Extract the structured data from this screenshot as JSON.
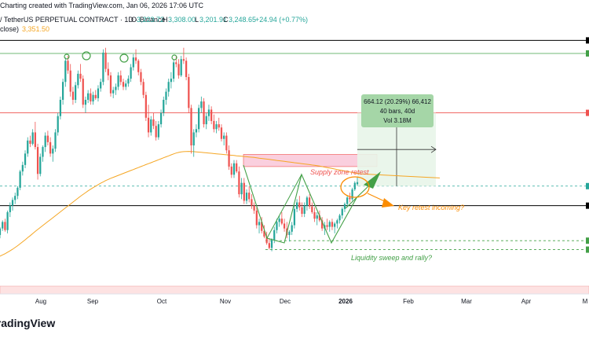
{
  "header": {
    "attribution": "Charting created with TradingView.com, Jan 06, 2026 17:06 UTC",
    "symbol": "/ TetherUS PERPETUAL CONTRACT · 1D · Binance",
    "o_label": "O",
    "o_value": "3,223.72",
    "h_label": "H",
    "h_value": "3,308.00",
    "l_label": "L",
    "l_value": "3,201.91",
    "c_label": "C",
    "c_value": "3,248.65",
    "change": "+24.94 (+0.77%)",
    "ma_label": "close)",
    "ma_value": "3,351.50"
  },
  "colors": {
    "up": "#26a69a",
    "down": "#ef5350",
    "ma": "#f5a623",
    "pattern": "#43a047",
    "supply_zone": "#f8bbd0",
    "retest": "#fb8c00",
    "measure": "#a5d6a7",
    "measure_box": "#e8f5e9"
  },
  "annotations": {
    "supply_zone": "Supply zone retest",
    "key_retest": "Key retest incoming?",
    "liquidity": "Liquidity sweep and rally?"
  },
  "measure": {
    "line1": "664.12 (20.29%) 66,412",
    "line2": "40 bars, 40d",
    "line3": "Vol 3.18M"
  },
  "logo": "TradingView",
  "chart_data": {
    "type": "candlestick",
    "x_ticks": [
      "Aug",
      "Sep",
      "Oct",
      "Nov",
      "Dec",
      "2026",
      "Feb",
      "Mar",
      "Apr",
      "M"
    ],
    "ylim": [
      2300,
      5100
    ],
    "candles": [
      [
        2600,
        2700,
        2560,
        2680
      ],
      [
        2680,
        2780,
        2650,
        2760
      ],
      [
        2760,
        2800,
        2640,
        2660
      ],
      [
        2660,
        2900,
        2620,
        2880
      ],
      [
        2880,
        3000,
        2820,
        2960
      ],
      [
        2960,
        3060,
        2900,
        3030
      ],
      [
        3030,
        3120,
        2980,
        3080
      ],
      [
        3080,
        3200,
        3040,
        3180
      ],
      [
        3180,
        3400,
        3150,
        3380
      ],
      [
        3380,
        3500,
        3330,
        3460
      ],
      [
        3460,
        3640,
        3420,
        3600
      ],
      [
        3600,
        3800,
        3560,
        3760
      ],
      [
        3760,
        3820,
        3680,
        3720
      ],
      [
        3720,
        3900,
        3700,
        3860
      ],
      [
        3860,
        3990,
        3650,
        3680
      ],
      [
        3680,
        3720,
        3280,
        3350
      ],
      [
        3350,
        3600,
        3320,
        3560
      ],
      [
        3560,
        3700,
        3500,
        3680
      ],
      [
        3680,
        3860,
        3620,
        3820
      ],
      [
        3820,
        3880,
        3700,
        3740
      ],
      [
        3740,
        3800,
        3560,
        3600
      ],
      [
        3600,
        3700,
        3500,
        3660
      ],
      [
        3660,
        3900,
        3620,
        3860
      ],
      [
        3860,
        4100,
        3820,
        4060
      ],
      [
        4060,
        4300,
        4020,
        4260
      ],
      [
        4260,
        4520,
        4200,
        4480
      ],
      [
        4480,
        4780,
        4420,
        4740
      ],
      [
        4740,
        4800,
        4580,
        4620
      ],
      [
        4620,
        4700,
        4300,
        4360
      ],
      [
        4360,
        4420,
        4200,
        4260
      ],
      [
        4260,
        4480,
        4220,
        4440
      ],
      [
        4440,
        4620,
        4400,
        4580
      ],
      [
        4580,
        4700,
        4480,
        4520
      ],
      [
        4520,
        4560,
        4160,
        4200
      ],
      [
        4200,
        4300,
        4100,
        4260
      ],
      [
        4260,
        4380,
        4220,
        4340
      ],
      [
        4340,
        4400,
        4200,
        4240
      ],
      [
        4240,
        4360,
        4200,
        4320
      ],
      [
        4320,
        4380,
        4260,
        4280
      ],
      [
        4280,
        4440,
        4240,
        4400
      ],
      [
        4400,
        4520,
        4360,
        4480
      ],
      [
        4480,
        4880,
        4440,
        4840
      ],
      [
        4840,
        4900,
        4600,
        4640
      ],
      [
        4640,
        4720,
        4500,
        4560
      ],
      [
        4560,
        4600,
        4300,
        4340
      ],
      [
        4340,
        4420,
        4280,
        4380
      ],
      [
        4380,
        4460,
        4320,
        4420
      ],
      [
        4420,
        4600,
        4380,
        4560
      ],
      [
        4560,
        4620,
        4440,
        4480
      ],
      [
        4480,
        4520,
        4380,
        4420
      ],
      [
        4420,
        4500,
        4380,
        4460
      ],
      [
        4460,
        4560,
        4420,
        4520
      ],
      [
        4520,
        4700,
        4480,
        4660
      ],
      [
        4660,
        4820,
        4620,
        4780
      ],
      [
        4780,
        4880,
        4700,
        4740
      ],
      [
        4740,
        4760,
        4560,
        4600
      ],
      [
        4600,
        4640,
        4440,
        4480
      ],
      [
        4480,
        4520,
        4280,
        4320
      ],
      [
        4320,
        4360,
        4000,
        4040
      ],
      [
        4040,
        4200,
        3800,
        3860
      ],
      [
        3860,
        4060,
        3820,
        4020
      ],
      [
        4020,
        4100,
        3900,
        3940
      ],
      [
        3940,
        4000,
        3760,
        3800
      ],
      [
        3800,
        4000,
        3770,
        3960
      ],
      [
        3960,
        4140,
        3920,
        4100
      ],
      [
        4100,
        4300,
        4060,
        4260
      ],
      [
        4260,
        4400,
        4200,
        4360
      ],
      [
        4360,
        4520,
        4300,
        4480
      ],
      [
        4480,
        4600,
        4400,
        4520
      ],
      [
        4520,
        4760,
        4480,
        4720
      ],
      [
        4720,
        4800,
        4660,
        4700
      ],
      [
        4700,
        4760,
        4520,
        4560
      ],
      [
        4560,
        4800,
        4540,
        4760
      ],
      [
        4760,
        4900,
        4700,
        4740
      ],
      [
        4740,
        4780,
        4500,
        4540
      ],
      [
        4540,
        4580,
        4100,
        4160
      ],
      [
        4160,
        4200,
        3600,
        3700
      ],
      [
        3700,
        3900,
        3560,
        3860
      ],
      [
        3860,
        3960,
        3800,
        3900
      ],
      [
        3900,
        4200,
        3860,
        4160
      ],
      [
        4160,
        4300,
        4100,
        4240
      ],
      [
        4240,
        4280,
        3920,
        3960
      ],
      [
        3960,
        4100,
        3900,
        4060
      ],
      [
        4060,
        4200,
        4000,
        4140
      ],
      [
        4140,
        4180,
        3960,
        4000
      ],
      [
        4000,
        4080,
        3860,
        3900
      ],
      [
        3900,
        4000,
        3850,
        3960
      ],
      [
        3960,
        4040,
        3880,
        3920
      ],
      [
        3920,
        3960,
        3750,
        3780
      ],
      [
        3780,
        3860,
        3700,
        3820
      ],
      [
        3820,
        3860,
        3600,
        3640
      ],
      [
        3640,
        3700,
        3400,
        3440
      ],
      [
        3440,
        3480,
        3300,
        3340
      ],
      [
        3340,
        3520,
        3300,
        3480
      ],
      [
        3480,
        3520,
        3360,
        3380
      ],
      [
        3380,
        3440,
        3060,
        3100
      ],
      [
        3100,
        3300,
        3040,
        3240
      ],
      [
        3240,
        3300,
        2980,
        3020
      ],
      [
        3020,
        3160,
        2980,
        3120
      ],
      [
        3120,
        3200,
        3000,
        3040
      ],
      [
        3040,
        3100,
        2920,
        2960
      ],
      [
        2960,
        3000,
        2860,
        2900
      ],
      [
        2900,
        2940,
        2680,
        2720
      ],
      [
        2720,
        2800,
        2620,
        2760
      ],
      [
        2760,
        2820,
        2620,
        2650
      ],
      [
        2650,
        2720,
        2560,
        2580
      ],
      [
        2580,
        2640,
        2480,
        2500
      ],
      [
        2500,
        2560,
        2420,
        2440
      ],
      [
        2440,
        2560,
        2400,
        2540
      ],
      [
        2540,
        2700,
        2500,
        2660
      ],
      [
        2660,
        2800,
        2620,
        2760
      ],
      [
        2760,
        2840,
        2700,
        2800
      ],
      [
        2800,
        2880,
        2720,
        2740
      ],
      [
        2740,
        2800,
        2640,
        2680
      ],
      [
        2680,
        2760,
        2560,
        2600
      ],
      [
        2600,
        2660,
        2520,
        2640
      ],
      [
        2640,
        2760,
        2600,
        2720
      ],
      [
        2720,
        2960,
        2680,
        2920
      ],
      [
        2920,
        3040,
        2880,
        3000
      ],
      [
        3000,
        3080,
        2900,
        2940
      ],
      [
        2940,
        3000,
        2820,
        2860
      ],
      [
        2860,
        3000,
        2820,
        2960
      ],
      [
        2960,
        3080,
        2900,
        3060
      ],
      [
        3060,
        3100,
        2920,
        2950
      ],
      [
        2950,
        3000,
        2860,
        2880
      ],
      [
        2880,
        2940,
        2760,
        2800
      ],
      [
        2800,
        2880,
        2720,
        2840
      ],
      [
        2840,
        2900,
        2760,
        2780
      ],
      [
        2780,
        2820,
        2650,
        2680
      ],
      [
        2680,
        2760,
        2600,
        2720
      ],
      [
        2720,
        2800,
        2660,
        2700
      ],
      [
        2700,
        2780,
        2640,
        2760
      ],
      [
        2760,
        2800,
        2660,
        2700
      ],
      [
        2700,
        2760,
        2620,
        2740
      ],
      [
        2740,
        2800,
        2680,
        2780
      ],
      [
        2780,
        2860,
        2740,
        2840
      ],
      [
        2840,
        2940,
        2800,
        2920
      ],
      [
        2920,
        3000,
        2880,
        2980
      ],
      [
        2980,
        3080,
        2940,
        3060
      ],
      [
        3060,
        3120,
        3000,
        3040
      ],
      [
        3040,
        3180,
        3020,
        3160
      ],
      [
        3160,
        3260,
        3140,
        3240
      ],
      [
        3223.72,
        3308.0,
        3201.91,
        3248.65
      ]
    ],
    "ma": [
      2340,
      2355,
      2370,
      2388,
      2405,
      2425,
      2446,
      2468,
      2492,
      2516,
      2540,
      2566,
      2592,
      2618,
      2644,
      2668,
      2692,
      2716,
      2740,
      2764,
      2788,
      2812,
      2836,
      2860,
      2884,
      2908,
      2932,
      2956,
      2980,
      3004,
      3028,
      3052,
      3076,
      3098,
      3120,
      3142,
      3162,
      3182,
      3200,
      3218,
      3236,
      3252,
      3268,
      3282,
      3296,
      3308,
      3320,
      3332,
      3344,
      3356,
      3368,
      3380,
      3392,
      3404,
      3416,
      3428,
      3440,
      3452,
      3464,
      3476,
      3488,
      3500,
      3512,
      3524,
      3536,
      3548,
      3560,
      3572,
      3584,
      3596,
      3606,
      3614,
      3620,
      3624,
      3626,
      3627,
      3626,
      3624,
      3621,
      3618,
      3615,
      3612,
      3609,
      3606,
      3603,
      3600,
      3597,
      3594,
      3591,
      3588,
      3585,
      3582,
      3579,
      3576,
      3573,
      3570,
      3567,
      3564,
      3561,
      3558,
      3555,
      3552,
      3548,
      3544,
      3540,
      3536,
      3532,
      3528,
      3524,
      3520,
      3516,
      3512,
      3508,
      3504,
      3500,
      3496,
      3492,
      3488,
      3484,
      3480,
      3476,
      3472,
      3468,
      3464,
      3460,
      3456,
      3452,
      3446,
      3440,
      3434,
      3428,
      3422,
      3416,
      3410,
      3404,
      3398,
      3392,
      3386,
      3380,
      3374,
      3368,
      3362,
      3356,
      3351.5
    ],
    "h_lines": [
      {
        "name": "top",
        "value": 4990,
        "color": "#000000"
      },
      {
        "name": "high",
        "value": 4830,
        "color": "#43a047"
      },
      {
        "name": "resistance",
        "value": 4100,
        "color": "#ef5350"
      },
      {
        "name": "support",
        "value": 2960,
        "color": "#000000"
      },
      {
        "name": "current",
        "value": 3200,
        "color": "#26a69a"
      },
      {
        "name": "low1",
        "value": 2530,
        "color": "#43a047"
      },
      {
        "name": "low2",
        "value": 2420,
        "color": "#43a047"
      }
    ],
    "supply_zone": [
      3440,
      3590
    ]
  }
}
